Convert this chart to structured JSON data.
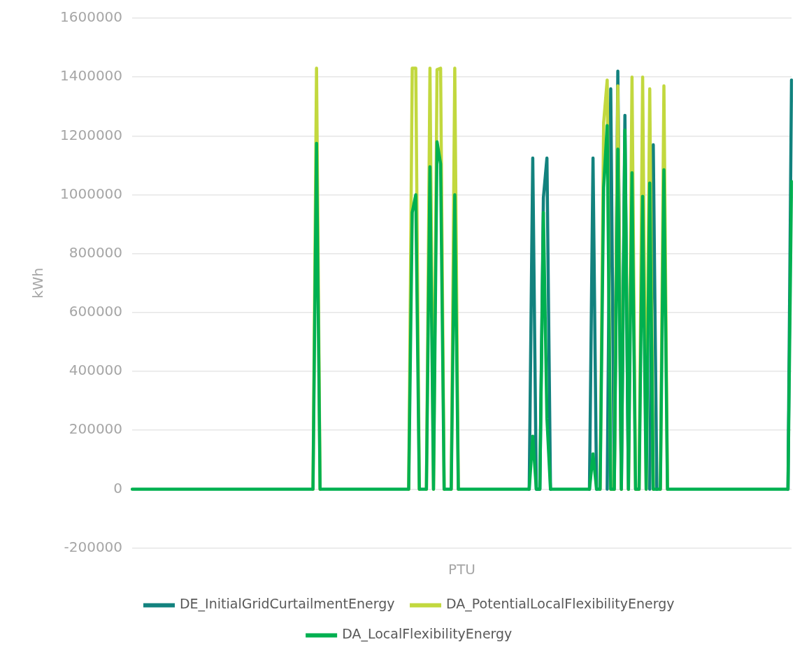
{
  "chart_data": {
    "type": "line",
    "xlabel": "PTU",
    "ylabel": "kWh",
    "ylim": [
      -200000,
      1600000
    ],
    "yticks": [
      -200000,
      0,
      200000,
      400000,
      600000,
      800000,
      1000000,
      1200000,
      1400000,
      1600000
    ],
    "grid": "y",
    "legend": "bottom",
    "marker": "none",
    "line_style": "solid",
    "categories": [
      null,
      null,
      null,
      null,
      null,
      null,
      null,
      null,
      null,
      null,
      null,
      null,
      null,
      null,
      null,
      null,
      null,
      null,
      null,
      null,
      null,
      null,
      null,
      null,
      null,
      null,
      null,
      null,
      null,
      null,
      null,
      null,
      null,
      null,
      null,
      null,
      null,
      null,
      null,
      null,
      null,
      null,
      null,
      null,
      null,
      null,
      null,
      null,
      null,
      null,
      null,
      null,
      null,
      null,
      null,
      null,
      null,
      null,
      null,
      null,
      null,
      null,
      null,
      null,
      null,
      null,
      null,
      null,
      null,
      null,
      null,
      null,
      null,
      null,
      null,
      null,
      null,
      null,
      null,
      null,
      null,
      null,
      null,
      null,
      null,
      null,
      null,
      null,
      null,
      null,
      null,
      null,
      null,
      null,
      null,
      null,
      null,
      null,
      null,
      null,
      null,
      null,
      null,
      null,
      null,
      null,
      null,
      null,
      null,
      null,
      null,
      null,
      null,
      null,
      null,
      null,
      null,
      null,
      null,
      null,
      null,
      null,
      null,
      null,
      null,
      null,
      null,
      null,
      null,
      null,
      null,
      null,
      null,
      null,
      null,
      null,
      null,
      null,
      null,
      null,
      null,
      null,
      null,
      null,
      null,
      null,
      null,
      null,
      null,
      null,
      null,
      null,
      null,
      null,
      null,
      null,
      null,
      null,
      null,
      null,
      null,
      null,
      null,
      null,
      null,
      null,
      null,
      null,
      null,
      null,
      null,
      null,
      null,
      null,
      null,
      null,
      null,
      null,
      null,
      null,
      null,
      null,
      null,
      null,
      null,
      null,
      null
    ],
    "series": [
      {
        "name": "DE_InitialGridCurtailmentEnergy",
        "color": "#12827e",
        "values": [
          null,
          null,
          null,
          null,
          null,
          null,
          null,
          null,
          null,
          null,
          null,
          null,
          null,
          null,
          null,
          null,
          null,
          null,
          null,
          null,
          null,
          null,
          null,
          null,
          null,
          null,
          null,
          null,
          null,
          null,
          null,
          null,
          null,
          null,
          null,
          null,
          null,
          null,
          null,
          null,
          null,
          null,
          null,
          null,
          null,
          null,
          null,
          null,
          null,
          null,
          null,
          null,
          null,
          null,
          null,
          null,
          null,
          null,
          null,
          null,
          null,
          null,
          null,
          null,
          null,
          null,
          null,
          null,
          null,
          null,
          null,
          null,
          null,
          null,
          null,
          null,
          null,
          null,
          null,
          null,
          null,
          null,
          null,
          null,
          null,
          null,
          null,
          null,
          null,
          null,
          null,
          null,
          null,
          null,
          null,
          null,
          null,
          null,
          null,
          null,
          null,
          null,
          null,
          null,
          null,
          null,
          null,
          null,
          null,
          null,
          null,
          null,
          0,
          1125000,
          0,
          0,
          990000,
          1125000,
          0,
          null,
          null,
          null,
          null,
          null,
          null,
          null,
          null,
          null,
          null,
          0,
          1125000,
          0,
          null,
          null,
          0,
          1360000,
          0,
          1420000,
          0,
          1270000,
          0,
          null,
          null,
          null,
          null,
          null,
          0,
          1170000,
          0,
          null,
          null,
          null,
          null,
          null,
          null,
          null,
          null,
          null,
          null,
          null,
          null,
          null,
          null,
          null,
          null,
          null,
          null,
          null,
          null,
          null,
          null,
          null,
          null,
          null,
          null,
          null,
          null,
          null,
          null,
          null,
          null,
          null,
          null,
          null,
          null,
          0,
          1390000
        ]
      },
      {
        "name": "DA_PotentialLocalFlexibilityEnergy",
        "color": "#c2d83e",
        "values": [
          null,
          null,
          null,
          null,
          null,
          null,
          null,
          null,
          null,
          null,
          null,
          null,
          null,
          null,
          null,
          null,
          null,
          null,
          null,
          null,
          null,
          null,
          null,
          null,
          null,
          null,
          null,
          null,
          null,
          null,
          null,
          null,
          null,
          null,
          null,
          null,
          null,
          null,
          null,
          null,
          null,
          null,
          null,
          null,
          null,
          null,
          null,
          null,
          null,
          null,
          null,
          0,
          1430000,
          0,
          null,
          null,
          null,
          null,
          null,
          null,
          null,
          null,
          null,
          null,
          null,
          null,
          null,
          null,
          null,
          null,
          null,
          null,
          null,
          null,
          null,
          null,
          null,
          null,
          0,
          1430000,
          1430000,
          0,
          null,
          0,
          1430000,
          0,
          1425000,
          1430000,
          0,
          null,
          0,
          1430000,
          0,
          null,
          null,
          null,
          null,
          null,
          null,
          null,
          null,
          null,
          null,
          null,
          null,
          null,
          null,
          null,
          null,
          null,
          null,
          null,
          null,
          null,
          null,
          null,
          null,
          null,
          null,
          null,
          null,
          null,
          null,
          null,
          null,
          null,
          null,
          null,
          null,
          null,
          null,
          null,
          0,
          1245000,
          1390000,
          0,
          0,
          1370000,
          0,
          null,
          0,
          1400000,
          0,
          0,
          1400000,
          0,
          1360000,
          0,
          null,
          0,
          1370000,
          0,
          null,
          null,
          null,
          null,
          null,
          null,
          null,
          null,
          null,
          null,
          null,
          null,
          null,
          null,
          null,
          null,
          null,
          null,
          null,
          null,
          null,
          null,
          null,
          null,
          null,
          null,
          null,
          null,
          null,
          null,
          null,
          null,
          null,
          null,
          null
        ]
      },
      {
        "name": "DA_LocalFlexibilityEnergy",
        "color": "#00b050",
        "values": [
          0,
          0,
          0,
          0,
          0,
          0,
          0,
          0,
          0,
          0,
          0,
          0,
          0,
          0,
          0,
          0,
          0,
          0,
          0,
          0,
          0,
          0,
          0,
          0,
          0,
          0,
          0,
          0,
          0,
          0,
          0,
          0,
          0,
          0,
          0,
          0,
          0,
          0,
          0,
          0,
          0,
          0,
          0,
          0,
          0,
          0,
          0,
          0,
          0,
          0,
          0,
          0,
          1175000,
          0,
          0,
          0,
          0,
          0,
          0,
          0,
          0,
          0,
          0,
          0,
          0,
          0,
          0,
          0,
          0,
          0,
          0,
          0,
          0,
          0,
          0,
          0,
          0,
          0,
          0,
          940000,
          1000000,
          0,
          0,
          0,
          1095000,
          0,
          1180000,
          1105000,
          0,
          0,
          0,
          1000000,
          0,
          0,
          0,
          0,
          0,
          0,
          0,
          0,
          0,
          0,
          0,
          0,
          0,
          0,
          0,
          0,
          0,
          0,
          0,
          0,
          0,
          180000,
          0,
          0,
          940000,
          240000,
          0,
          0,
          0,
          0,
          0,
          0,
          0,
          0,
          0,
          0,
          0,
          0,
          120000,
          0,
          0,
          1025000,
          1235000,
          0,
          0,
          1155000,
          0,
          1220000,
          0,
          1075000,
          0,
          0,
          995000,
          0,
          1040000,
          0,
          0,
          0,
          1085000,
          0,
          0,
          0,
          0,
          0,
          0,
          0,
          0,
          0,
          0,
          0,
          0,
          0,
          0,
          0,
          0,
          0,
          0,
          0,
          0,
          0,
          0,
          0,
          0,
          0,
          0,
          0,
          0,
          0,
          0,
          0,
          0,
          0,
          0,
          0,
          1045000
        ]
      }
    ]
  }
}
